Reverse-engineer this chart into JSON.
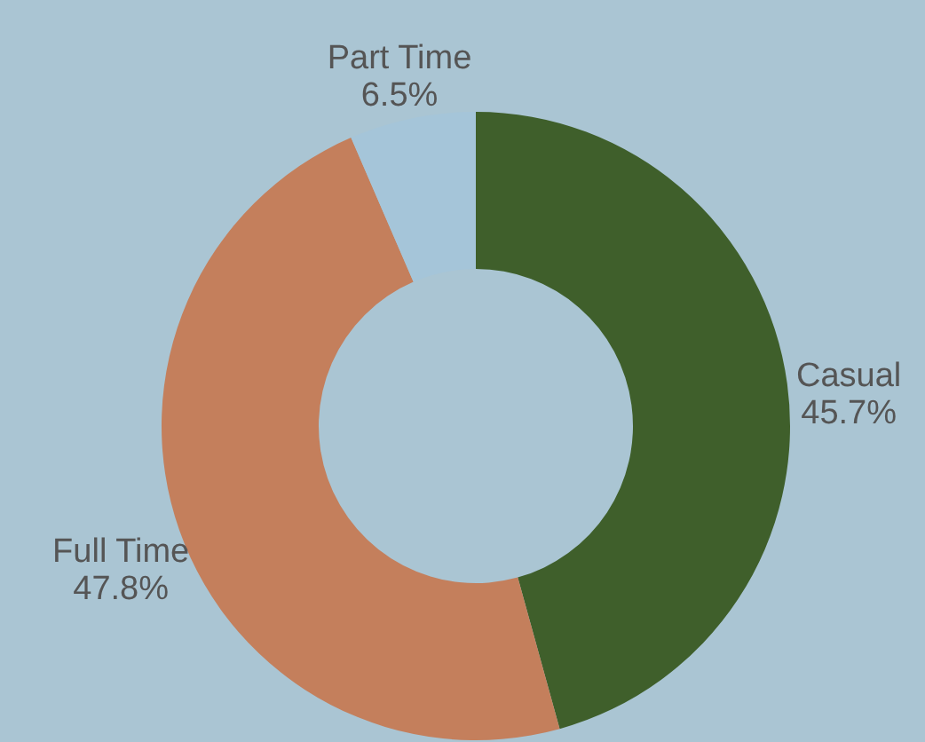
{
  "chart_data": {
    "type": "donut",
    "categories": [
      "Casual",
      "Full Time",
      "Part Time"
    ],
    "values": [
      45.7,
      47.8,
      6.5
    ],
    "colors": [
      "#3f5f2b",
      "#c47f5c",
      "#a5c5d9"
    ],
    "value_labels": [
      "45.7%",
      "47.8%",
      "6.5%"
    ]
  }
}
